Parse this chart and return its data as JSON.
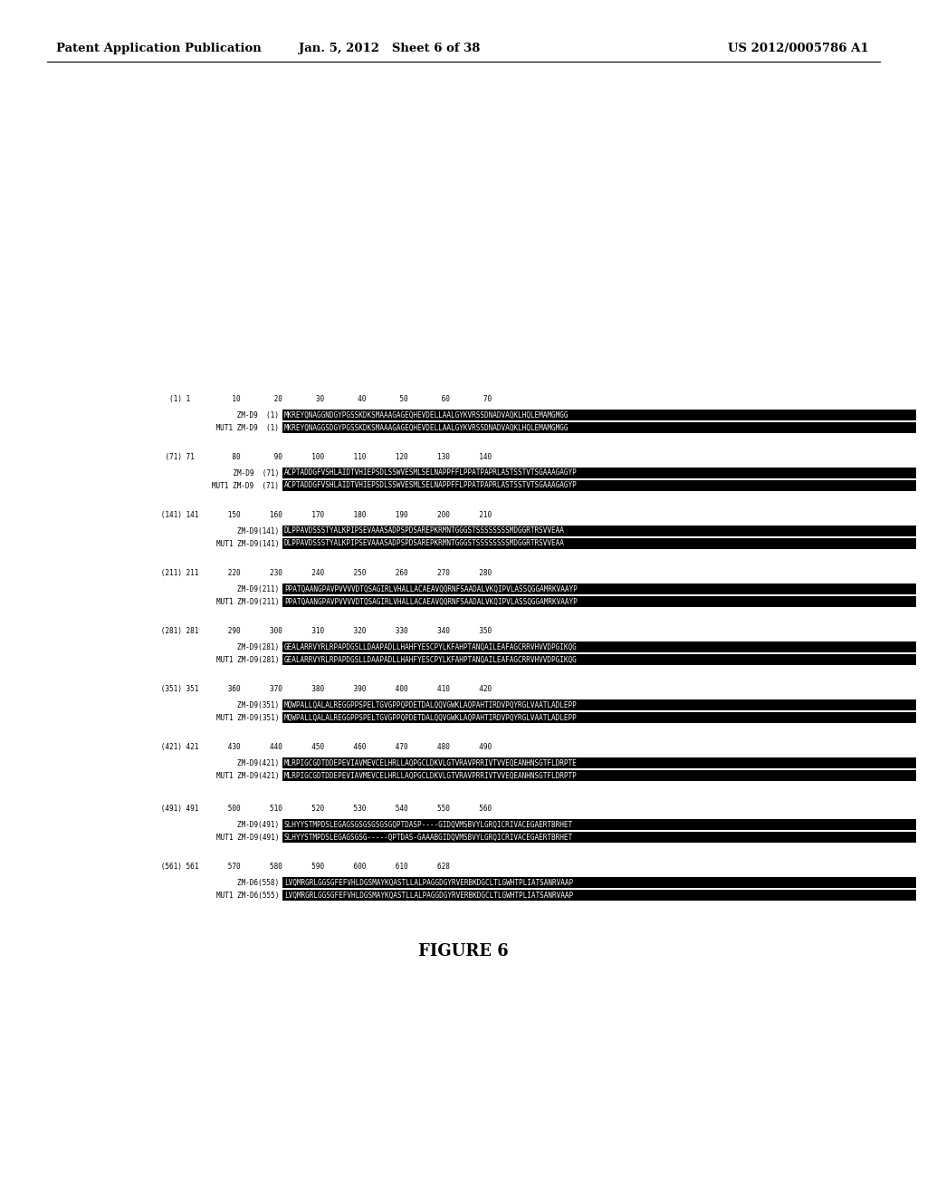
{
  "header_left": "Patent Application Publication",
  "header_mid": "Jan. 5, 2012   Sheet 6 of 38",
  "header_right": "US 2012/0005786 A1",
  "figure_label": "FIGURE 6",
  "background_color": "#ffffff",
  "sequences": [
    {
      "ruler": "        (1) 1          10        20        30        40        50        60        70",
      "label1": "         ZM-D9",
      "pos1": "(1)",
      "seq1": "MKREYQNAGGNDGYPGSSKDKSMAAAGAGEQHEVDELLAALGYKVRSSDNADVAQKLHQLEMAMGMGG",
      "label2": "    MUT1 ZM-D9",
      "pos2": "(1)",
      "seq2": "MKREYQNAGGSDGYPGSSKDKSMAAAGAGEQHEVDELLAALGYKVRSSDNADVAQKLHQLEMAMGMGG"
    },
    {
      "ruler": "       (71) 71         80        90       100       110       120       130       140",
      "label1": "       ZM-D9",
      "pos1": "(71)",
      "seq1": "ACPTADDGFVSHLAIDTVHIEPSDLSSWVESMLSELNAPPFFLPPATPAPRLASTSSTVTSGAAAGAGYP",
      "label2": "   MUT1 ZM-D9",
      "pos2": "(71)",
      "seq2": "ACPTADDGFVSHLAIDTVHIEPSDLSSWVESMLSELNAPPFFLPPATPAPRLASTSSTVTSGAAAGAGYP"
    },
    {
      "ruler": "      (141) 141       150       160       170       180       190       200       210",
      "label1": "   ZM-D9(141)",
      "pos1": "",
      "seq1": "DLPPAVDSSSTYALKPIPSEVAAASADPSPDSAREPKRMNTGGGSTSSSSSSSSMDGGRTRSVVEAA",
      "label2": "MUT1 ZM-D9(141)",
      "pos2": "",
      "seq2": "DLPPAVDSSSTYALKPIPSEVAAASADPSPDSAREPKRMNTGGGSTSSSSSSSSMDGGRTRSVVEAA"
    },
    {
      "ruler": "      (211) 211       220       230       240       250       260       270       280",
      "label1": "   ZM-D9(211)",
      "pos1": "",
      "seq1": "PPATQAANGPAVPVVVVDTQSAGIRLVHALLACAEAVQQRNFSAADALVKQIPVLASSQGGAMRKVAAYP",
      "label2": "MUT1 ZM-D9(211)",
      "pos2": "",
      "seq2": "PPATQAANGPAVPVVVVDTQSAGIRLVHALLACAEAVQQRNFSAADALVKQIPVLASSQGGAMRKVAAYP"
    },
    {
      "ruler": "      (281) 281       290       300       310       320       330       340       350",
      "label1": "   ZM-D9(281)",
      "pos1": "",
      "seq1": "GEALARRVYRLRPAPDGSLLDAAPADLLHAHFYESCPYLKFAHPTANQAILEAFAGCRRVHVVDPGIKQG",
      "label2": "MUT1 ZM-D9(281)",
      "pos2": "",
      "seq2": "GEALARRVYRLRPAPDGSLLDAAPADLLHAHFYESCPYLKFAHPTANQAILEAFAGCRRVHVVDPGIKQG"
    },
    {
      "ruler": "      (351) 351       360       370       380       390       400       410       420",
      "label1": "   ZM-D9(351)",
      "pos1": "",
      "seq1": "MQWPALLQALALREGGPPSPELTGVGPPQPDETDALQQVGWKLAQPAHTIRDVPQYRGLVAATLADLEPP",
      "label2": "MUT1 ZM-D9(351)",
      "pos2": "",
      "seq2": "MQWPALLQALALREGGPPSPELTGVGPPQPDETDALQQVGWKLAQPAHTIRDVPQYRGLVAATLADLEPP"
    },
    {
      "ruler": "      (421) 421       430       440       450       460       470       480       490",
      "label1": "   ZM-D9(421)",
      "pos1": "",
      "seq1": "MLRPIGCGDTDDEPEVIAVMEVCELHRLLAQPGCLDKVLGTVRAVPRRIVTVVEQEANHNSGTFLDRPTE",
      "label2": "MUT1 ZM-D9(421)",
      "pos2": "",
      "seq2": "MLRPIGCGDTDDEPEVIAVMEVCELHRLLAQPGCLDKVLGTVRAVPRRIVTVVEQEANHNSGTFLDRPTP"
    },
    {
      "ruler": "      (491) 491       500       510       520       530       540       550       560",
      "label1": "   ZM-D9(491)",
      "pos1": "",
      "seq1": "SLHYYSTMPDSLEGAGSGSGSGSGSGQPTDASP----GIDQVMSBVYLGRQICRIVACEGAERTBRHET",
      "label2": "MUT1 ZM-D9(491)",
      "pos2": "",
      "seq2": "SLHYYSTMPDSLEGAGSGSG-----QPTDAS-GAAABGIDQVMSBVYLGRQICRIVACEGAERTBRHET"
    },
    {
      "ruler": "      (561) 561       570       580       590       600       610       628",
      "label1": "   ZM-D6(558)",
      "pos1": "",
      "seq1": "LVQMRGRLGGSGFEFVHLDGSMAYKQASTLLALPAGGDGYRVERBKDGCLTLGWHTPLIATSANRVAAP",
      "label2": "MUT1 ZM-D6(555)",
      "pos2": "",
      "seq2": "LVQMRGRLGGSGFEFVHLDGSMAYKQASTLLALPAGGDGYRVERBKDGCLTLGWHTPLIATSANRVAAP"
    }
  ]
}
